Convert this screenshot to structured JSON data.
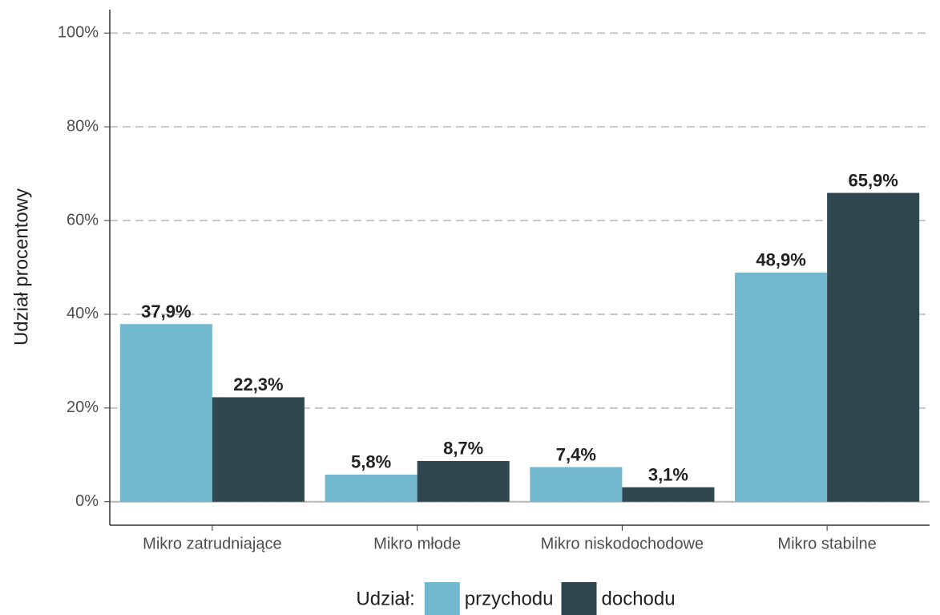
{
  "chart_data": {
    "type": "bar",
    "y_label": "Udział procentowy",
    "legend_title": "Udział:",
    "legend_position": "bottom",
    "grid": true,
    "categories": [
      "Mikro zatrudniające",
      "Mikro młode",
      "Mikro niskodochodowe",
      "Mikro stabilne"
    ],
    "series": [
      {
        "name": "przychodu",
        "color": "#72b9d0",
        "values": [
          37.9,
          5.8,
          7.4,
          48.9
        ],
        "value_labels": [
          "37,9%",
          "5,8%",
          "7,4%",
          "48,9%"
        ]
      },
      {
        "name": "dochodu",
        "color": "#2f4850",
        "values": [
          22.3,
          8.7,
          3.1,
          65.9
        ],
        "value_labels": [
          "22,3%",
          "8,7%",
          "3,1%",
          "65,9%"
        ]
      }
    ],
    "ylim": [
      -5,
      105
    ],
    "yticks": [
      {
        "value": 0,
        "label": "0%"
      },
      {
        "value": 20,
        "label": "20%"
      },
      {
        "value": 40,
        "label": "40%"
      },
      {
        "value": 60,
        "label": "60%"
      },
      {
        "value": 80,
        "label": "80%"
      },
      {
        "value": 100,
        "label": "100%"
      }
    ]
  }
}
